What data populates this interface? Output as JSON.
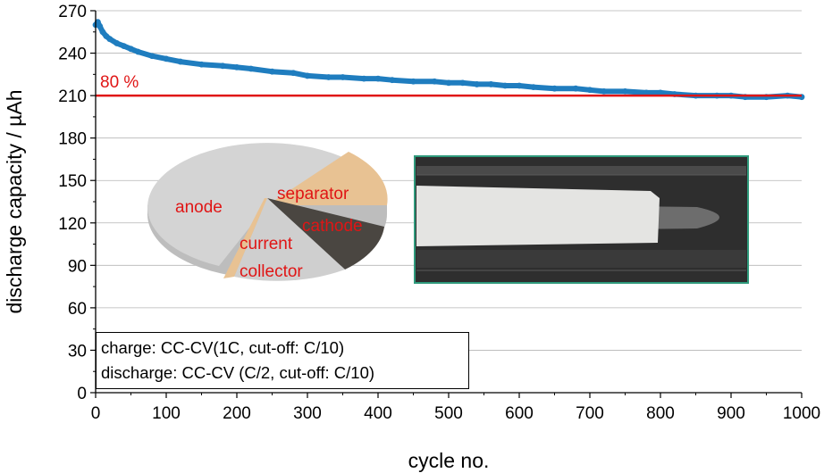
{
  "chart_data": {
    "type": "scatter",
    "title": "",
    "xlabel": "cycle no.",
    "ylabel": "discharge capacity / µAh",
    "xlim": [
      0,
      1000
    ],
    "ylim": [
      0,
      270
    ],
    "xticks": [
      "0",
      "100",
      "200",
      "300",
      "400",
      "500",
      "600",
      "700",
      "800",
      "900",
      "1000"
    ],
    "yticks": [
      "0",
      "30",
      "60",
      "90",
      "120",
      "150",
      "180",
      "210",
      "240",
      "270"
    ],
    "grid": "horizontal",
    "series": [
      {
        "color": "#1f7dbf",
        "x": [
          0,
          3,
          6,
          10,
          15,
          20,
          30,
          40,
          50,
          60,
          80,
          100,
          120,
          150,
          180,
          200,
          220,
          250,
          280,
          300,
          330,
          350,
          380,
          400,
          420,
          450,
          480,
          500,
          520,
          540,
          560,
          580,
          600,
          620,
          650,
          680,
          700,
          720,
          750,
          780,
          800,
          820,
          850,
          880,
          900,
          920,
          950,
          980,
          1000
        ],
        "y": [
          260,
          262,
          259,
          255,
          252,
          250,
          247,
          245,
          243,
          241,
          238,
          236,
          234,
          232,
          231,
          230,
          229,
          227,
          226,
          224,
          223,
          223,
          222,
          222,
          221,
          220,
          220,
          219,
          219,
          218,
          218,
          217,
          217,
          216,
          215,
          215,
          214,
          213,
          213,
          212,
          212,
          211,
          210,
          210,
          210,
          209,
          209,
          210,
          209
        ]
      }
    ],
    "reference_line": {
      "y": 210,
      "label": "80 %",
      "color": "#e01515"
    },
    "annotations": {
      "pie": [
        "anode",
        "separator",
        "cathode",
        "current",
        "collector"
      ],
      "legend": [
        "charge: CC-CV(1C, cut-off: C/10)",
        "discharge: CC-CV (C/2, cut-off: C/10)"
      ]
    }
  }
}
